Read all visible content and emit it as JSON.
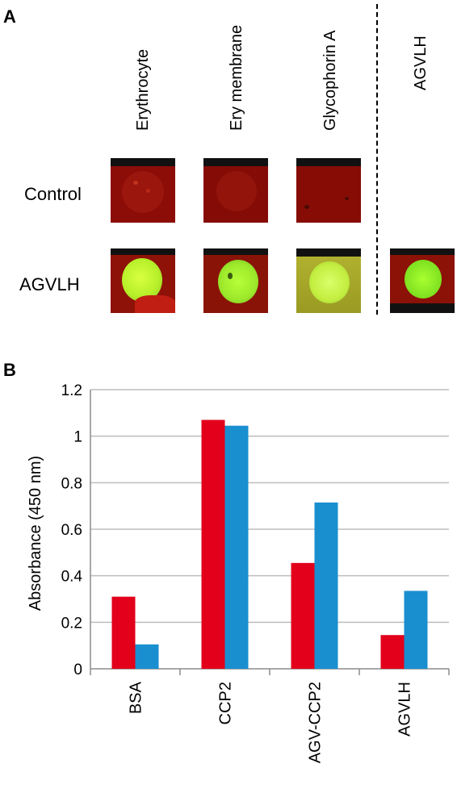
{
  "panel_a": {
    "letter": "A",
    "columns": [
      "Erythrocyte",
      "Ery membrane",
      "Glycophorin A",
      "AGVLH"
    ],
    "rows": [
      "Control",
      "AGVLH"
    ]
  },
  "panel_b": {
    "letter": "B"
  },
  "chart_data": {
    "type": "bar",
    "categories": [
      "BSA",
      "CCP2",
      "AGV-CCP2",
      "AGVLH"
    ],
    "series": [
      {
        "color": "#e2001a",
        "values": [
          0.31,
          1.07,
          0.455,
          0.145
        ]
      },
      {
        "color": "#1a8fd0",
        "values": [
          0.105,
          1.045,
          0.715,
          0.335
        ]
      }
    ],
    "ylabel": "Absorbance (450 nm)",
    "ylim": [
      0,
      1.2
    ],
    "yticks": [
      "0",
      "0.2",
      "0.4",
      "0.6",
      "0.8",
      "1",
      "1.2"
    ],
    "grid": true
  }
}
